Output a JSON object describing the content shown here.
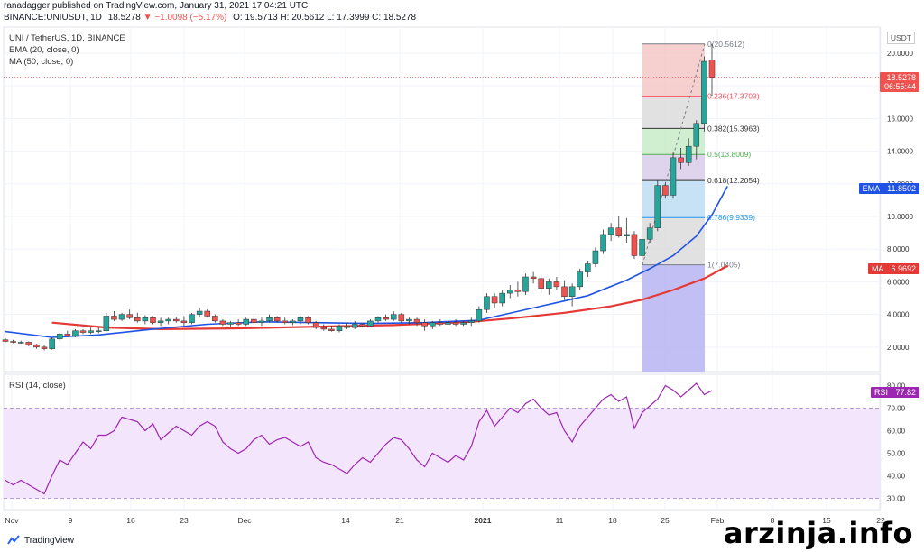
{
  "header": {
    "line1": "ranadagger published on TradingView.com, January 31, 2021 17:04:21 UTC",
    "symbol": "BINANCE:UNIUSDT, 1D",
    "price": "18.5278",
    "change": "−1.0098 (−5.17%)",
    "ohlc": "O: 19.5713 H: 20.5612 L: 17.3999 C: 18.5278"
  },
  "legend": {
    "title": "UNI / TetherUS, 1D, BINANCE",
    "ema": "EMA (20, close, 0)",
    "ma": "MA (50, close, 0)",
    "rsi": "RSI (14, close)"
  },
  "currency": "USDT",
  "tags": {
    "price": "18.5278",
    "countdown": "06:55:44",
    "ema": "EMA",
    "ema_value": "11.8502",
    "ma": "MA",
    "ma_value": "6.9692",
    "rsi": "RSI",
    "rsi_value": "77.82"
  },
  "footer_brand": "TradingView",
  "watermark": "arzinja.info",
  "colors": {
    "up": "#26a69a",
    "down": "#ef5350",
    "ema": "#1e53e5",
    "ma": "#e53935",
    "rsi": "#9c27b0"
  },
  "chart_data": {
    "type": "candlestick",
    "ylim": [
      0.5,
      21.6
    ],
    "y_ticks": [
      "2.0000",
      "4.0000",
      "6.0000",
      "8.0000",
      "10.0000",
      "12.0000",
      "14.0000",
      "16.0000",
      "18.0000",
      "20.0000"
    ],
    "x_ticks": [
      "Nov",
      "9",
      "16",
      "23",
      "Dec",
      "14",
      "21",
      "2021",
      "11",
      "18",
      "25",
      "Feb",
      "8",
      "15",
      "22"
    ],
    "ohlc": [
      [
        2.45,
        2.55,
        2.3,
        2.35
      ],
      [
        2.35,
        2.45,
        2.25,
        2.3
      ],
      [
        2.3,
        2.4,
        2.2,
        2.3
      ],
      [
        2.3,
        2.35,
        2.05,
        2.15
      ],
      [
        2.15,
        2.2,
        1.9,
        2.0
      ],
      [
        2.0,
        2.1,
        1.8,
        1.9
      ],
      [
        1.9,
        2.6,
        1.85,
        2.5
      ],
      [
        2.5,
        2.9,
        2.4,
        2.8
      ],
      [
        2.8,
        3.0,
        2.6,
        2.7
      ],
      [
        2.7,
        3.1,
        2.6,
        3.0
      ],
      [
        3.0,
        3.1,
        2.8,
        2.9
      ],
      [
        2.9,
        3.2,
        2.8,
        3.0
      ],
      [
        3.0,
        3.2,
        2.85,
        3.0
      ],
      [
        3.0,
        4.1,
        2.95,
        3.9
      ],
      [
        3.9,
        4.2,
        3.6,
        3.7
      ],
      [
        3.7,
        4.1,
        3.6,
        4.0
      ],
      [
        4.0,
        4.3,
        3.7,
        3.8
      ],
      [
        3.8,
        4.1,
        3.5,
        3.6
      ],
      [
        3.6,
        3.95,
        3.4,
        3.8
      ],
      [
        3.8,
        3.9,
        3.4,
        3.5
      ],
      [
        3.5,
        3.8,
        3.3,
        3.6
      ],
      [
        3.6,
        3.8,
        3.4,
        3.7
      ],
      [
        3.7,
        3.85,
        3.5,
        3.6
      ],
      [
        3.6,
        3.9,
        3.3,
        3.5
      ],
      [
        3.5,
        4.1,
        3.4,
        4.0
      ],
      [
        4.0,
        4.4,
        3.8,
        4.2
      ],
      [
        4.2,
        4.3,
        3.8,
        3.9
      ],
      [
        3.9,
        4.0,
        3.5,
        3.6
      ],
      [
        3.6,
        3.7,
        3.3,
        3.4
      ],
      [
        3.4,
        3.6,
        3.2,
        3.5
      ],
      [
        3.5,
        3.7,
        3.3,
        3.4
      ],
      [
        3.4,
        3.8,
        3.3,
        3.7
      ],
      [
        3.7,
        3.9,
        3.4,
        3.5
      ],
      [
        3.5,
        3.8,
        3.3,
        3.6
      ],
      [
        3.6,
        4.0,
        3.5,
        3.8
      ],
      [
        3.8,
        3.9,
        3.5,
        3.6
      ],
      [
        3.6,
        3.8,
        3.4,
        3.5
      ],
      [
        3.5,
        3.7,
        3.35,
        3.6
      ],
      [
        3.6,
        3.9,
        3.4,
        3.8
      ],
      [
        3.8,
        3.9,
        3.4,
        3.5
      ],
      [
        3.5,
        3.6,
        3.1,
        3.2
      ],
      [
        3.2,
        3.4,
        3.0,
        3.1
      ],
      [
        3.1,
        3.3,
        2.95,
        3.0
      ],
      [
        3.0,
        3.4,
        2.9,
        3.3
      ],
      [
        3.3,
        3.5,
        3.1,
        3.2
      ],
      [
        3.2,
        3.6,
        3.1,
        3.4
      ],
      [
        3.4,
        3.5,
        3.2,
        3.3
      ],
      [
        3.3,
        3.7,
        3.2,
        3.6
      ],
      [
        3.6,
        3.9,
        3.5,
        3.8
      ],
      [
        3.8,
        4.0,
        3.6,
        3.7
      ],
      [
        3.7,
        4.2,
        3.6,
        4.0
      ],
      [
        4.0,
        4.1,
        3.5,
        3.6
      ],
      [
        3.6,
        3.8,
        3.4,
        3.7
      ],
      [
        3.7,
        3.8,
        3.3,
        3.5
      ],
      [
        3.5,
        3.7,
        3.0,
        3.3
      ],
      [
        3.3,
        3.6,
        3.1,
        3.5
      ],
      [
        3.5,
        3.7,
        3.3,
        3.4
      ],
      [
        3.4,
        3.6,
        3.2,
        3.5
      ],
      [
        3.5,
        3.7,
        3.3,
        3.4
      ],
      [
        3.4,
        3.6,
        3.3,
        3.5
      ],
      [
        3.5,
        3.8,
        3.3,
        3.6
      ],
      [
        3.6,
        4.5,
        3.5,
        4.3
      ],
      [
        4.3,
        5.3,
        4.1,
        5.1
      ],
      [
        5.1,
        5.3,
        4.4,
        4.7
      ],
      [
        4.7,
        5.5,
        4.5,
        5.3
      ],
      [
        5.3,
        5.8,
        5.0,
        5.5
      ],
      [
        5.5,
        6.0,
        5.1,
        5.4
      ],
      [
        5.4,
        6.5,
        5.2,
        6.3
      ],
      [
        6.3,
        6.6,
        5.9,
        6.2
      ],
      [
        6.2,
        6.4,
        5.3,
        5.6
      ],
      [
        5.6,
        6.2,
        5.2,
        6.0
      ],
      [
        6.0,
        6.3,
        5.5,
        5.7
      ],
      [
        5.7,
        6.1,
        4.9,
        5.1
      ],
      [
        5.1,
        5.9,
        4.5,
        5.7
      ],
      [
        5.7,
        6.8,
        5.5,
        6.6
      ],
      [
        6.6,
        7.3,
        6.3,
        7.1
      ],
      [
        7.1,
        8.1,
        6.9,
        7.9
      ],
      [
        7.9,
        9.2,
        7.7,
        8.9
      ],
      [
        8.9,
        9.6,
        8.5,
        9.3
      ],
      [
        9.3,
        10.0,
        8.7,
        8.8
      ],
      [
        8.8,
        9.9,
        8.4,
        8.9
      ],
      [
        8.9,
        9.1,
        7.4,
        7.6
      ],
      [
        7.6,
        8.8,
        7.3,
        8.6
      ],
      [
        8.6,
        9.6,
        8.4,
        9.3
      ],
      [
        9.3,
        12.2,
        9.1,
        11.9
      ],
      [
        11.9,
        12.1,
        11.1,
        11.3
      ],
      [
        11.3,
        13.9,
        11.1,
        13.6
      ],
      [
        13.6,
        14.2,
        12.9,
        13.3
      ],
      [
        13.3,
        14.8,
        13.1,
        14.3
      ],
      [
        14.3,
        15.9,
        13.5,
        15.7
      ],
      [
        15.7,
        19.8,
        15.2,
        19.5
      ],
      [
        19.5713,
        20.5612,
        17.3999,
        18.5278
      ]
    ],
    "ema20": [
      [
        0,
        2.95
      ],
      [
        6,
        2.6
      ],
      [
        12,
        2.75
      ],
      [
        19,
        3.1
      ],
      [
        26,
        3.4
      ],
      [
        33,
        3.55
      ],
      [
        40,
        3.5
      ],
      [
        47,
        3.45
      ],
      [
        54,
        3.5
      ],
      [
        61,
        3.65
      ],
      [
        68,
        4.4
      ],
      [
        75,
        5.15
      ],
      [
        80,
        6.1
      ],
      [
        83,
        6.8
      ],
      [
        86,
        7.6
      ],
      [
        89,
        8.8
      ],
      [
        91,
        10.1
      ],
      [
        93,
        11.85
      ]
    ],
    "ma50": [
      [
        6,
        3.5
      ],
      [
        13,
        3.2
      ],
      [
        20,
        3.1
      ],
      [
        30,
        3.15
      ],
      [
        40,
        3.25
      ],
      [
        50,
        3.35
      ],
      [
        60,
        3.55
      ],
      [
        66,
        3.8
      ],
      [
        72,
        4.1
      ],
      [
        78,
        4.5
      ],
      [
        82,
        4.9
      ],
      [
        86,
        5.5
      ],
      [
        90,
        6.2
      ],
      [
        93,
        6.97
      ]
    ],
    "fib_levels": [
      {
        "ratio": "0",
        "value": 20.5612,
        "label": "0(20.5612)",
        "color": "#787b86"
      },
      {
        "ratio": "0.236",
        "value": 17.3703,
        "label": "0.236(17.3703)",
        "color": "#f7525f"
      },
      {
        "ratio": "0.382",
        "value": 15.3963,
        "label": "0.382(15.3963)",
        "color": "#333333"
      },
      {
        "ratio": "0.5",
        "value": 13.8009,
        "label": "0.5(13.8009)",
        "color": "#4caf50"
      },
      {
        "ratio": "0.618",
        "value": 12.2054,
        "label": "0.618(12.2054)",
        "color": "#333333"
      },
      {
        "ratio": "0.786",
        "value": 9.9339,
        "label": "0.786(9.9339)",
        "color": "#2196f3"
      },
      {
        "ratio": "1",
        "value": 7.0405,
        "label": "1(7.0405)",
        "color": "#787b86"
      }
    ],
    "fib_bands": [
      "#f4c7c7",
      "#dcdcdc",
      "#c8ecc8",
      "#d8cde8",
      "#bddcf3",
      "#dcdcdc",
      "#b7b4f2"
    ],
    "rsi": {
      "ylim": [
        25,
        85
      ],
      "band": [
        30,
        70
      ],
      "y_ticks": [
        "30.00",
        "40.00",
        "50.00",
        "60.00",
        "70.00",
        "80.00"
      ],
      "values": [
        38,
        36,
        38,
        36,
        34,
        32,
        40,
        47,
        45,
        50,
        55,
        52,
        58,
        58,
        60,
        66,
        65,
        64,
        60,
        63,
        56,
        59,
        62,
        60,
        58,
        62,
        64,
        62,
        55,
        52,
        50,
        52,
        56,
        58,
        54,
        56,
        57,
        55,
        53,
        55,
        48,
        46,
        45,
        43,
        41,
        45,
        48,
        46,
        50,
        54,
        57,
        56,
        52,
        47,
        44,
        50,
        48,
        46,
        49,
        47,
        53,
        64,
        69,
        62,
        66,
        70,
        68,
        72,
        74,
        70,
        67,
        68,
        60,
        55,
        62,
        66,
        70,
        74,
        76,
        73,
        75,
        61,
        68,
        71,
        74,
        80,
        78,
        75,
        78,
        81,
        76,
        77.82
      ]
    }
  }
}
